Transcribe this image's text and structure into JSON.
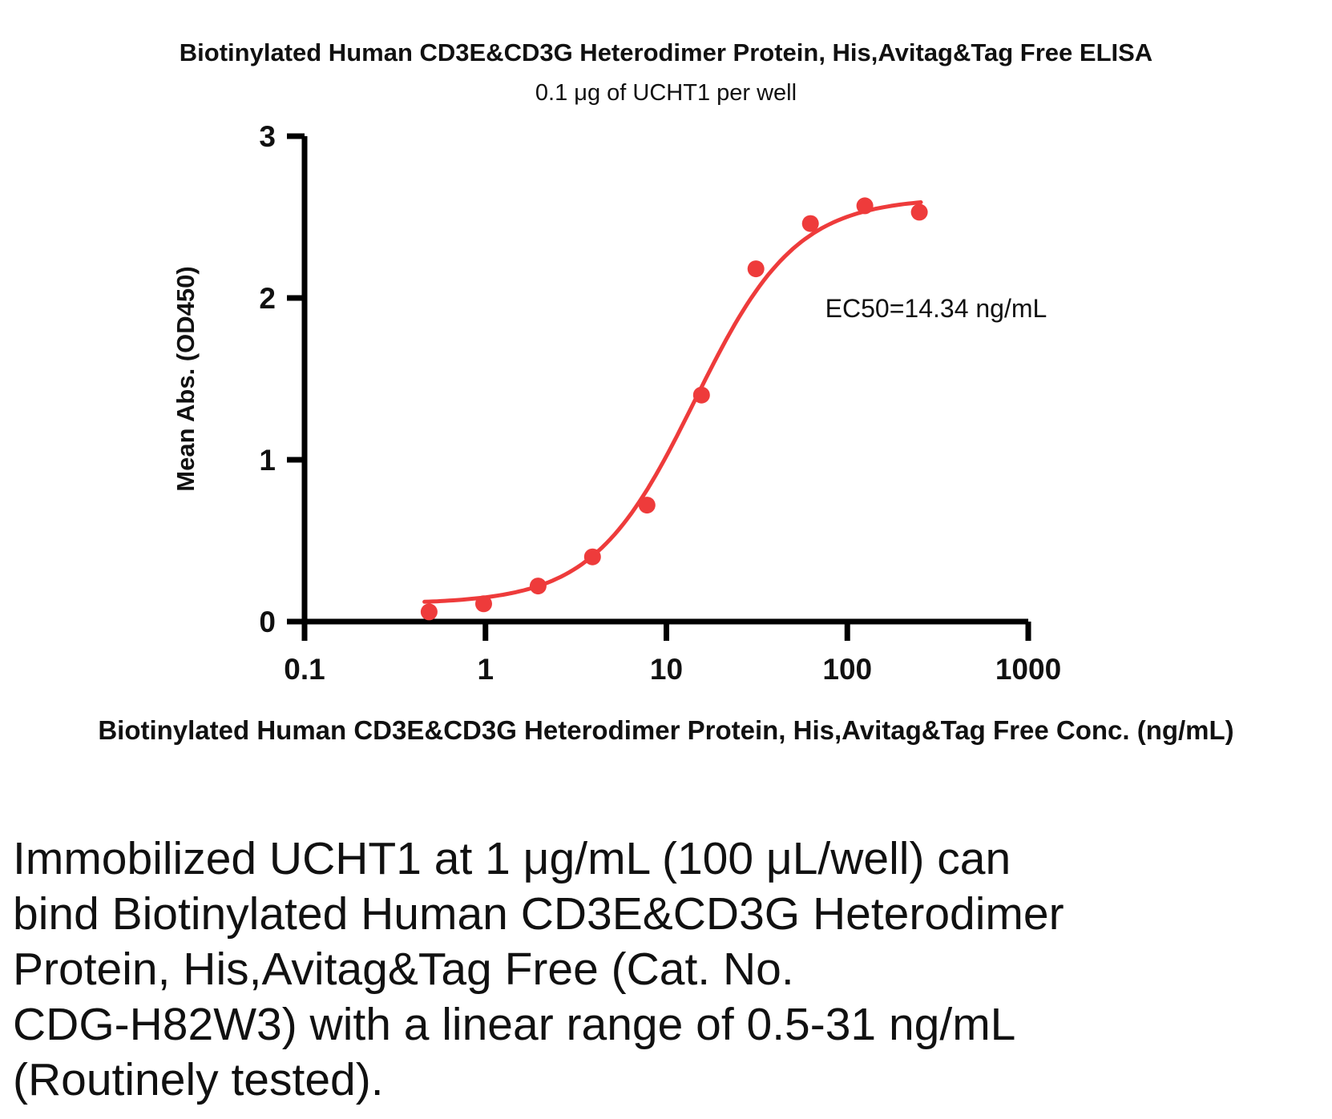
{
  "chart": {
    "title": "Biotinylated Human CD3E&CD3G Heterodimer Protein, His,Avitag&Tag Free ELISA",
    "subtitle": "0.1 μg of UCHT1 per well",
    "ec50_label": "EC50=14.34 ng/mL"
  },
  "chart_data": {
    "type": "scatter",
    "x_scale": "log",
    "title": "Biotinylated Human CD3E&CD3G Heterodimer Protein, His,Avitag&Tag Free ELISA",
    "subtitle": "0.1 μg of UCHT1 per well",
    "xlabel": "Biotinylated Human CD3E&CD3G Heterodimer Protein, His,Avitag&Tag Free Conc. (ng/mL)",
    "ylabel": "Mean Abs. (OD450)",
    "x": [
      0.488,
      0.977,
      1.953,
      3.906,
      7.813,
      15.625,
      31.25,
      62.5,
      125,
      250
    ],
    "y": [
      0.06,
      0.11,
      0.22,
      0.4,
      0.72,
      1.4,
      2.18,
      2.46,
      2.57,
      2.53
    ],
    "xticks": [
      0.1,
      1,
      10,
      100,
      1000
    ],
    "yticks": [
      0,
      1,
      2,
      3
    ],
    "xlim": [
      0.1,
      1000
    ],
    "ylim": [
      0,
      3
    ],
    "ec50_ng_ml": 14.34,
    "fit": {
      "model": "4PL",
      "bottom": 0.11,
      "top": 2.62,
      "ec50": 14.34,
      "hill": 1.55,
      "xmin": 0.46,
      "xmax": 255
    },
    "point_color": "#ee3b3b",
    "curve_color": "#ee3b3b",
    "axis_color": "#000000",
    "grid": false,
    "legend": "none"
  },
  "caption": {
    "lines": [
      "Immobilized UCHT1 at 1 μg/mL (100 μL/well) can",
      "bind Biotinylated Human CD3E&CD3G Heterodimer",
      "Protein, His,Avitag&Tag Free (Cat. No.",
      "CDG-H82W3) with a linear range of 0.5-31 ng/mL",
      "(Routinely tested)."
    ]
  }
}
